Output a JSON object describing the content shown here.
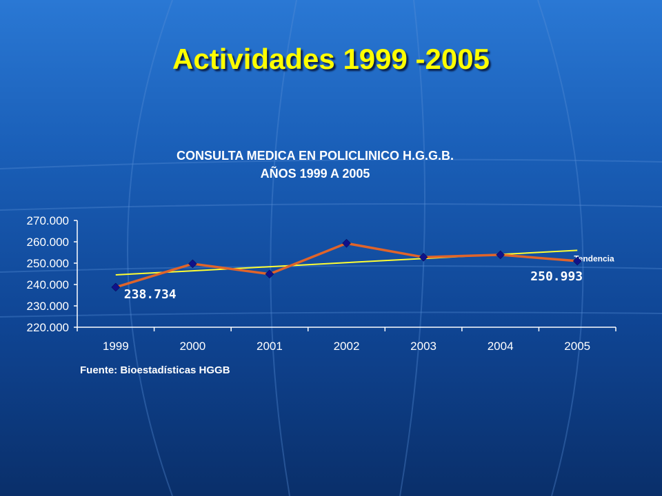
{
  "slide": {
    "title": "Actividades 1999 -2005",
    "source": "Fuente: Bioestadísticas HGGB"
  },
  "colors": {
    "title": "#ffff00",
    "series_line": "#e0642a",
    "series_marker": "#10128a",
    "trend_line": "#ffff33",
    "text": "#ffffff"
  },
  "chart_data": {
    "type": "line",
    "title": [
      "CONSULTA MEDICA EN POLICLINICO H.G.G.B.",
      "AÑOS 1999 A 2005"
    ],
    "x": [
      "1999",
      "2000",
      "2001",
      "2002",
      "2003",
      "2004",
      "2005"
    ],
    "series": [
      {
        "values": [
          238734,
          249700,
          244900,
          259300,
          252800,
          253900,
          250993
        ]
      }
    ],
    "trendline": {
      "label": "Tendencia",
      "start": 244500,
      "end": 256000
    },
    "data_labels": [
      {
        "x": "1999",
        "text": "238.734"
      },
      {
        "x": "2005",
        "text": "250.993"
      }
    ],
    "yticks": [
      "220.000",
      "230.000",
      "240.000",
      "250.000",
      "260.000",
      "270.000"
    ],
    "ylim": [
      220000,
      270000
    ],
    "grid": false,
    "legend": "none"
  }
}
